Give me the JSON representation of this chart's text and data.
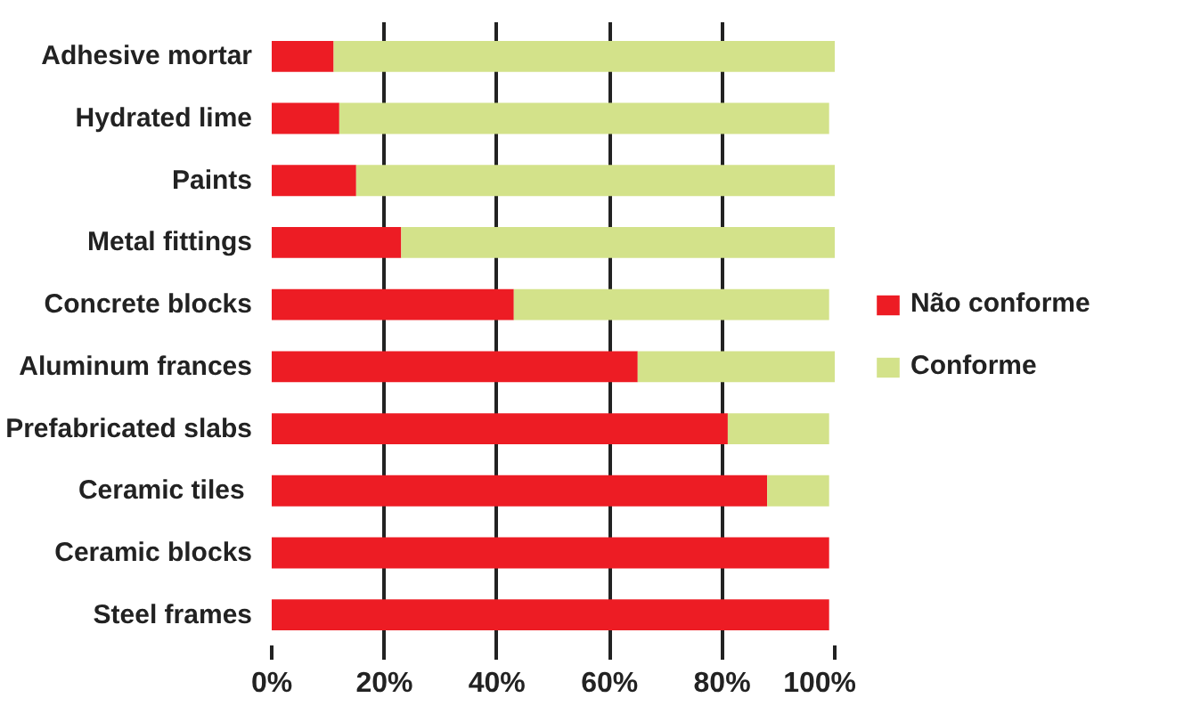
{
  "chart_data": {
    "type": "bar",
    "orientation": "horizontal",
    "stacked": true,
    "categories": [
      "Adhesive mortar",
      "Hydrated lime",
      "Paints",
      "Metal fittings",
      "Concrete blocks",
      "Aluminum frances",
      "Prefabricated slabs",
      "Ceramic tiles ",
      "Ceramic blocks",
      "Steel frames"
    ],
    "series": [
      {
        "name": "Não conforme",
        "color": "#ed1c24",
        "values": [
          11,
          12,
          15,
          23,
          43,
          65,
          81,
          88,
          99,
          99
        ]
      },
      {
        "name": "Conforme",
        "color": "#d3e28a",
        "values": [
          89,
          87,
          85,
          77,
          56,
          35,
          18,
          11,
          0,
          0
        ]
      }
    ],
    "xlim": [
      0,
      100
    ],
    "xticks": [
      {
        "value": 0,
        "label": "0%"
      },
      {
        "value": 20,
        "label": "20%"
      },
      {
        "value": 40,
        "label": "40%"
      },
      {
        "value": 60,
        "label": "60%"
      },
      {
        "value": 80,
        "label": "80%"
      },
      {
        "value": 100,
        "label": "100%"
      }
    ],
    "grid": "x",
    "legend": "right"
  }
}
